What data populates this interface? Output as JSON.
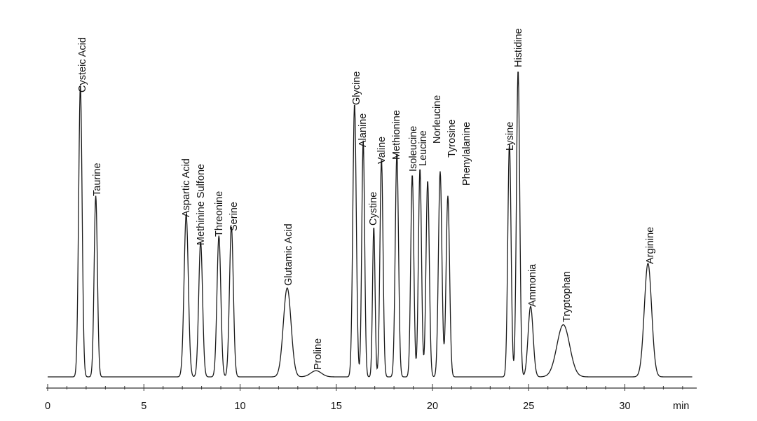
{
  "chart_data": {
    "type": "line",
    "title": "",
    "xlabel": "",
    "ylabel": "",
    "x_unit": "min",
    "xlim": [
      0,
      33.5
    ],
    "ylim": [
      0,
      1
    ],
    "grid": false,
    "legend": "none",
    "x_ticks": [
      0,
      5,
      10,
      15,
      20,
      25,
      30
    ],
    "x_tick_labels": [
      "0",
      "5",
      "10",
      "15",
      "20",
      "25",
      "30"
    ],
    "colors": {
      "trace": "#1a1a1a",
      "axis": "#333333",
      "label": "#111111"
    },
    "peaks": [
      {
        "name": "Cysteic Acid",
        "rt": 1.7,
        "height": 0.95
      },
      {
        "name": "Taurine",
        "rt": 2.5,
        "height": 0.59
      },
      {
        "name": "Aspartic Acid",
        "rt": 7.2,
        "height": 0.53
      },
      {
        "name": "Methinine Sulfone",
        "rt": 7.95,
        "height": 0.44
      },
      {
        "name": "Threonine",
        "rt": 8.9,
        "height": 0.46
      },
      {
        "name": "Serine",
        "rt": 9.55,
        "height": 0.49
      },
      {
        "name": "Glutamic Acid",
        "rt": 12.45,
        "height": 0.29
      },
      {
        "name": "Proline",
        "rt": 13.95,
        "height": 0.02
      },
      {
        "name": "Glycine",
        "rt": 15.95,
        "height": 0.89
      },
      {
        "name": "Alanine",
        "rt": 16.4,
        "height": 0.77
      },
      {
        "name": "Cystine",
        "rt": 16.95,
        "height": 0.49
      },
      {
        "name": "Valine",
        "rt": 17.35,
        "height": 0.71
      },
      {
        "name": "Methionine",
        "rt": 18.15,
        "height": 0.73
      },
      {
        "name": "Isoleucine",
        "rt": 18.95,
        "height": 0.66
      },
      {
        "name": "Leucine",
        "rt": 19.35,
        "height": 0.68
      },
      {
        "name": "Norleucine",
        "rt": 19.75,
        "height": 0.64
      },
      {
        "name": "Tyrosine",
        "rt": 20.4,
        "height": 0.67
      },
      {
        "name": "Phenylalanine",
        "rt": 20.8,
        "height": 0.59
      },
      {
        "name": "Lysine",
        "rt": 24.0,
        "height": 0.76
      },
      {
        "name": "Histidine",
        "rt": 24.45,
        "height": 1.0
      },
      {
        "name": "Ammonia",
        "rt": 25.1,
        "height": 0.23
      },
      {
        "name": "Tryptophan",
        "rt": 26.8,
        "height": 0.17
      },
      {
        "name": "Arginine",
        "rt": 31.2,
        "height": 0.37
      }
    ]
  }
}
